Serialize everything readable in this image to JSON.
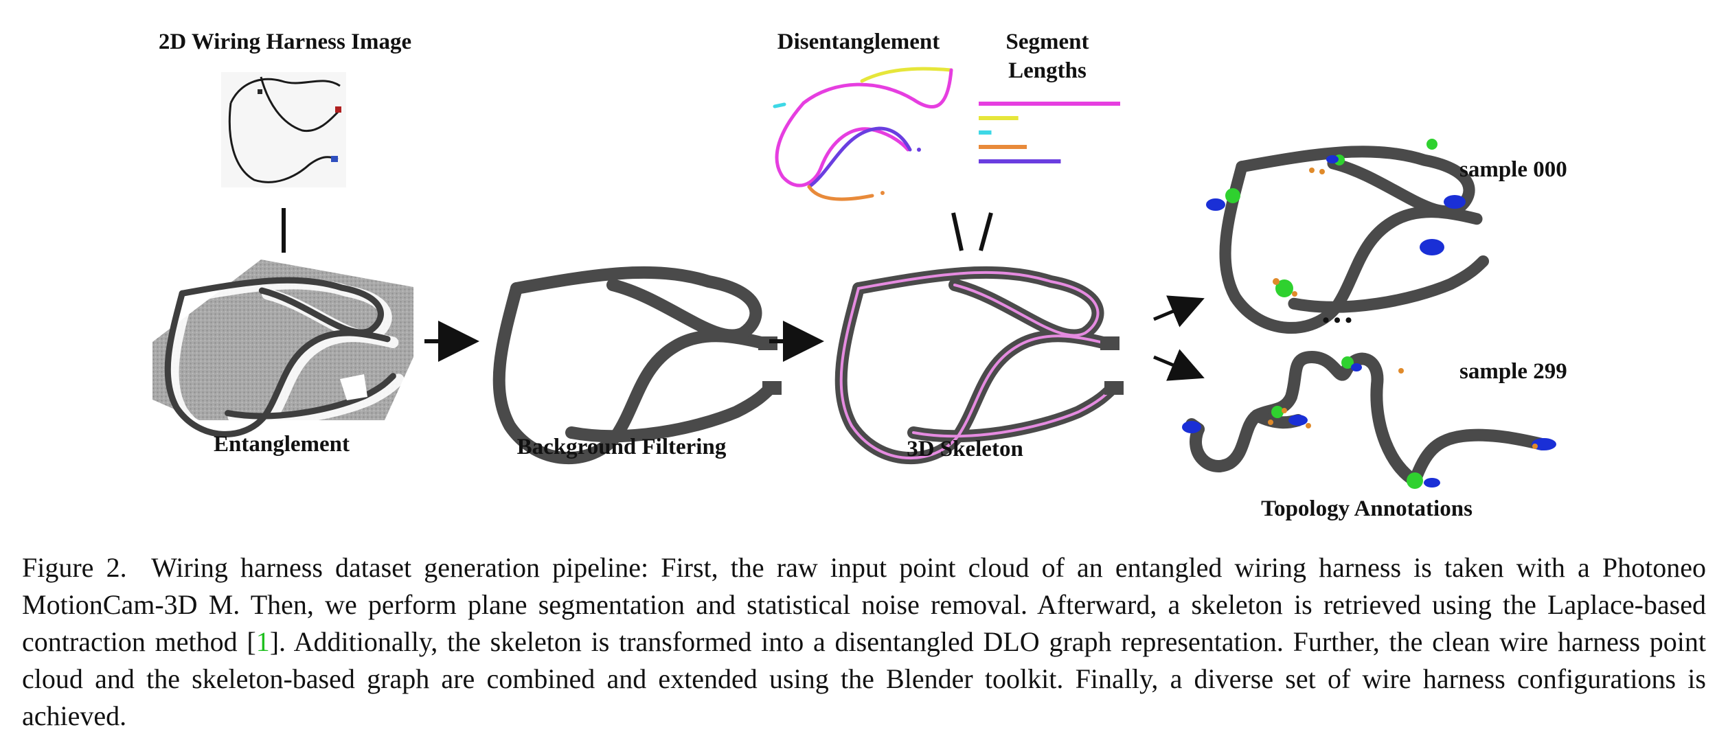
{
  "figure": {
    "labels": {
      "input_image": "2D Wiring Harness Image",
      "entanglement": "Entanglement",
      "background_filtering": "Background Filtering",
      "skeleton": "3D Skeleton",
      "disentanglement": "Disentanglement",
      "segment_lengths_line1": "Segment",
      "segment_lengths_line2": "Lengths",
      "topology": "Topology Annotations",
      "sample_a": "sample 000",
      "sample_b": "sample 299",
      "ellipsis": "•••"
    },
    "segment_lengths": [
      {
        "color": "#e63ee0",
        "relative_length": 1.0
      },
      {
        "color": "#e6e63a",
        "relative_length": 0.28
      },
      {
        "color": "#3ed8e6",
        "relative_length": 0.09
      },
      {
        "color": "#e88a3a",
        "relative_length": 0.34
      },
      {
        "color": "#6a3ee0",
        "relative_length": 0.58
      }
    ],
    "colors": {
      "wire": "#4a4a4a",
      "skeleton": "#e58be0",
      "node_green": "#2fd12f",
      "node_blue": "#1a2fd6",
      "node_orange": "#e08a2a"
    }
  },
  "caption": {
    "prefix": "Figure 2.",
    "text_before_ref": "Wiring harness dataset generation pipeline: First, the raw input point cloud of an entangled wiring harness is taken with a Photoneo MotionCam-3D M. Then, we perform plane segmentation and statistical noise removal. Afterward, a skeleton is retrieved using the Laplace-based contraction method [",
    "ref": "1",
    "text_after_ref": "]. Additionally, the skeleton is transformed into a disentangled DLO graph representation. Further, the clean wire harness point cloud and the skeleton-based graph are combined and extended using the Blender toolkit. Finally, a diverse set of wire harness configurations is achieved."
  }
}
